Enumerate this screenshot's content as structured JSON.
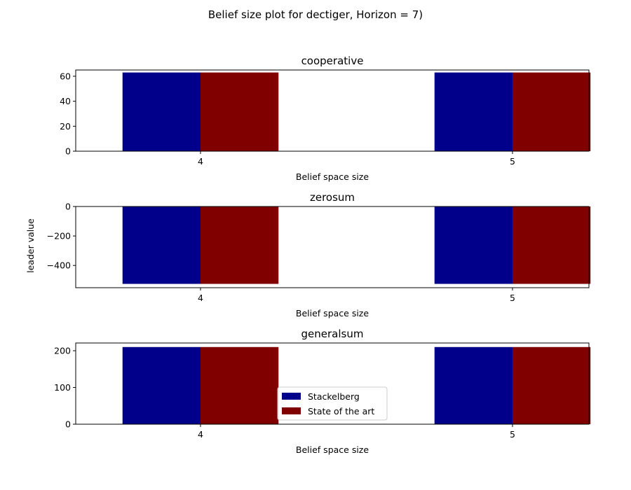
{
  "figure": {
    "suptitle": "Belief size plot for dectiger, Horizon = 7)",
    "ylabel": "leader value"
  },
  "legend": {
    "placement": "lower-center",
    "entries": [
      {
        "name": "Stackelberg",
        "color": "#00008b"
      },
      {
        "name": "State of the art",
        "color": "#800000"
      }
    ]
  },
  "chart_data": [
    {
      "type": "bar",
      "title": "cooperative",
      "xlabel": "Belief space size",
      "categories": [
        "4",
        "5"
      ],
      "ylim": [
        0,
        65
      ],
      "yticks": [
        0,
        20,
        40,
        60
      ],
      "ytick_labels": [
        "0",
        "20",
        "40",
        "60"
      ],
      "series": [
        {
          "name": "Stackelberg",
          "color": "#00008b",
          "values": [
            63,
            63
          ]
        },
        {
          "name": "State of the art",
          "color": "#800000",
          "values": [
            63,
            63
          ]
        }
      ]
    },
    {
      "type": "bar",
      "title": "zerosum",
      "xlabel": "Belief space size",
      "categories": [
        "4",
        "5"
      ],
      "ylim": [
        -551,
        0
      ],
      "yticks": [
        0,
        -200,
        -400
      ],
      "ytick_labels": [
        "0",
        "−200",
        "−400"
      ],
      "series": [
        {
          "name": "Stackelberg",
          "color": "#00008b",
          "values": [
            -525,
            -525
          ]
        },
        {
          "name": "State of the art",
          "color": "#800000",
          "values": [
            -525,
            -525
          ]
        }
      ]
    },
    {
      "type": "bar",
      "title": "generalsum",
      "xlabel": "Belief space size",
      "categories": [
        "4",
        "5"
      ],
      "ylim": [
        0,
        221
      ],
      "yticks": [
        0,
        100,
        200
      ],
      "ytick_labels": [
        "0",
        "100",
        "200"
      ],
      "series": [
        {
          "name": "Stackelberg",
          "color": "#00008b",
          "values": [
            210,
            210
          ]
        },
        {
          "name": "State of the art",
          "color": "#800000",
          "values": [
            210,
            210
          ]
        }
      ]
    }
  ]
}
